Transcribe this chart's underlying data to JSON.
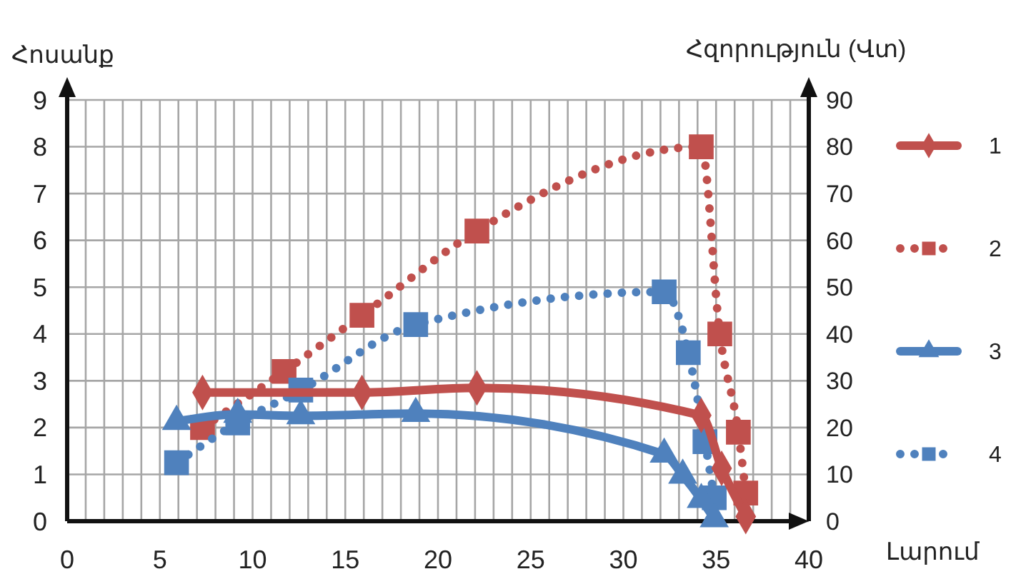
{
  "chart_data": {
    "type": "line",
    "xlabel": "Լարում",
    "ylabel": "Հոսանք",
    "y2label": "Հզորություն  (Վտ)",
    "xlim": [
      0,
      40
    ],
    "xticks": [
      0,
      {
        "value": 1,
        "label": null
      },
      {
        "value": 2,
        "label": null
      },
      {
        "value": 3,
        "label": null
      },
      {
        "value": 4,
        "label": null
      },
      5,
      {
        "value": 6,
        "label": null
      },
      {
        "value": 7,
        "label": null
      },
      {
        "value": 8,
        "label": null
      },
      {
        "value": 9,
        "label": null
      },
      10,
      {
        "value": 11,
        "label": null
      },
      {
        "value": 12,
        "label": null
      },
      {
        "value": 13,
        "label": null
      },
      {
        "value": 14,
        "label": null
      },
      15,
      {
        "value": 16,
        "label": null
      },
      {
        "value": 17,
        "label": null
      },
      {
        "value": 18,
        "label": null
      },
      {
        "value": 19,
        "label": null
      },
      20,
      {
        "value": 21,
        "label": null
      },
      {
        "value": 22,
        "label": null
      },
      {
        "value": 23,
        "label": null
      },
      {
        "value": 24,
        "label": null
      },
      25,
      {
        "value": 26,
        "label": null
      },
      {
        "value": 27,
        "label": null
      },
      {
        "value": 28,
        "label": null
      },
      {
        "value": 29,
        "label": null
      },
      30,
      {
        "value": 31,
        "label": null
      },
      {
        "value": 32,
        "label": null
      },
      {
        "value": 33,
        "label": null
      },
      {
        "value": 34,
        "label": null
      },
      35,
      {
        "value": 36,
        "label": null
      },
      {
        "value": 37,
        "label": null
      },
      {
        "value": 38,
        "label": null
      },
      {
        "value": 39,
        "label": null
      },
      40
    ],
    "ylim": [
      0,
      9
    ],
    "yticks": [
      0,
      1,
      2,
      3,
      4,
      5,
      6,
      7,
      8,
      9
    ],
    "y2lim": [
      0,
      90
    ],
    "y2ticks": [
      0,
      10,
      20,
      30,
      40,
      50,
      60,
      70,
      80,
      90
    ],
    "grid": true,
    "legend": "right",
    "series": [
      {
        "name": "1",
        "color": "#c0504d",
        "marker": "diamond",
        "line_style": "solid",
        "x": [
          7.3,
          15.9,
          22.1,
          34.2,
          35.3,
          36.6
        ],
        "values": [
          2.75,
          2.75,
          2.85,
          2.26,
          1.13,
          0.1
        ]
      },
      {
        "name": "2",
        "color": "#c0504d",
        "marker": "square",
        "line_style": "dotted",
        "axis": "y2",
        "x": [
          7.3,
          11.7,
          15.9,
          22.1,
          34.2,
          35.2,
          36.2,
          36.6
        ],
        "values": [
          20,
          32,
          44,
          62,
          80,
          40,
          19,
          6
        ]
      },
      {
        "name": "3",
        "color": "#4f81bd",
        "marker": "triangle",
        "line_style": "solid",
        "x": [
          5.9,
          9.2,
          12.6,
          18.8,
          32.2,
          33.2,
          34.2,
          34.9
        ],
        "values": [
          2.13,
          2.28,
          2.25,
          2.3,
          1.43,
          0.98,
          0.46,
          0.05
        ]
      },
      {
        "name": "4",
        "color": "#4f81bd",
        "marker": "square",
        "line_style": "dotted",
        "axis": "y2",
        "x": [
          5.9,
          9.2,
          12.6,
          18.8,
          32.2,
          33.5,
          34.4,
          34.9
        ],
        "values": [
          12.5,
          21,
          28,
          42,
          49,
          36,
          17,
          5
        ]
      }
    ]
  }
}
